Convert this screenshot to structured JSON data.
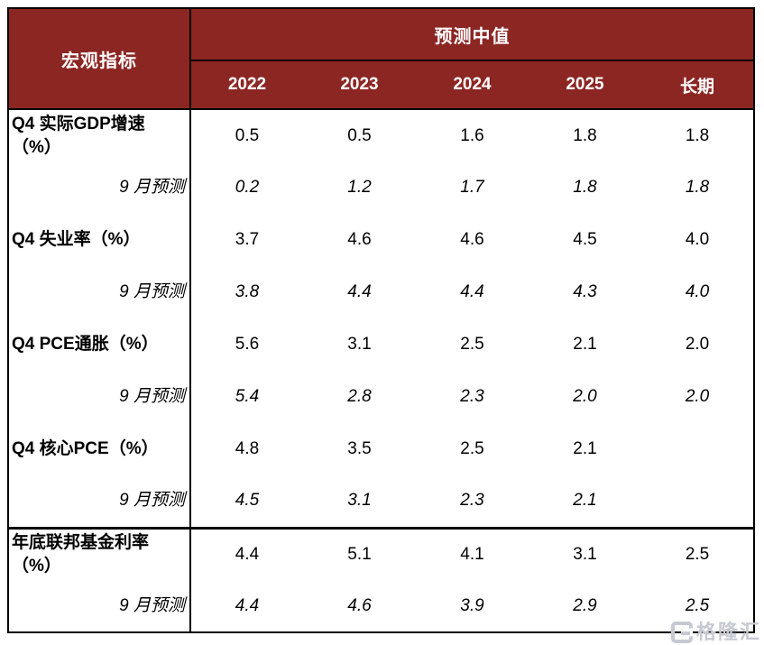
{
  "table": {
    "corner_header": "宏观指标",
    "group_header": "预测中值",
    "columns": [
      "2022",
      "2023",
      "2024",
      "2025",
      "长期"
    ],
    "rows": [
      {
        "type": "indicator",
        "label": "Q4 实际GDP增速\n（%）",
        "values": [
          "0.5",
          "0.5",
          "1.6",
          "1.8",
          "1.8"
        ]
      },
      {
        "type": "forecast",
        "label": "9 月预测",
        "values": [
          "0.2",
          "1.2",
          "1.7",
          "1.8",
          "1.8"
        ]
      },
      {
        "type": "indicator",
        "label": "Q4 失业率（%）",
        "values": [
          "3.7",
          "4.6",
          "4.6",
          "4.5",
          "4.0"
        ]
      },
      {
        "type": "forecast",
        "label": "9 月预测",
        "values": [
          "3.8",
          "4.4",
          "4.4",
          "4.3",
          "4.0"
        ]
      },
      {
        "type": "indicator",
        "label": "Q4 PCE通胀（%）",
        "values": [
          "5.6",
          "3.1",
          "2.5",
          "2.1",
          "2.0"
        ]
      },
      {
        "type": "forecast",
        "label": "9 月预测",
        "values": [
          "5.4",
          "2.8",
          "2.3",
          "2.0",
          "2.0"
        ]
      },
      {
        "type": "indicator",
        "label": "Q4 核心PCE（%）",
        "values": [
          "4.8",
          "3.5",
          "2.5",
          "2.1",
          ""
        ]
      },
      {
        "type": "forecast",
        "label": "9 月预测",
        "values": [
          "4.5",
          "3.1",
          "2.3",
          "2.1",
          ""
        ]
      },
      {
        "type": "indicator",
        "label": "年底联邦基金利率\n（%）",
        "values": [
          "4.4",
          "5.1",
          "4.1",
          "3.1",
          "2.5"
        ],
        "section_start": true
      },
      {
        "type": "forecast",
        "label": "9 月预测",
        "values": [
          "4.4",
          "4.6",
          "3.9",
          "2.9",
          "2.5"
        ]
      }
    ]
  },
  "colors": {
    "header_bg": "#8C2623",
    "header_text": "#FFFFFF",
    "border": "#000000",
    "watermark": "#C6C9D2"
  },
  "watermark": {
    "text": "格隆汇"
  }
}
